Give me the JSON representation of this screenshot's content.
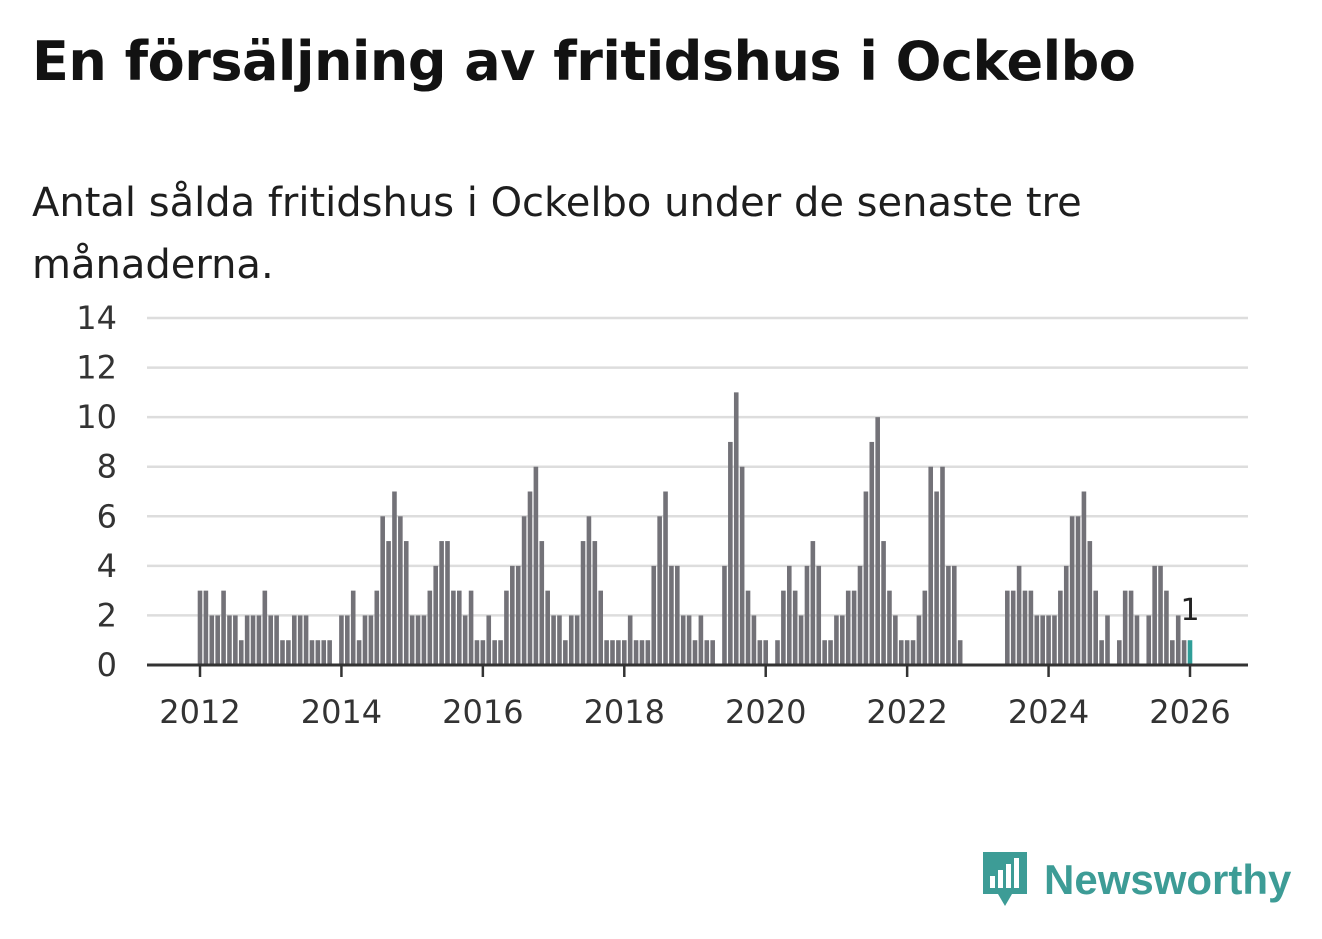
{
  "header": {
    "title": "En försäljning av fritidshus i Ockelbo",
    "subtitle": "Antal sålda fritidshus i Ockelbo under de senaste tre månaderna."
  },
  "brand": {
    "name": "Newsworthy",
    "icon": "newsworthy-logo-icon",
    "color": "#3d9c96"
  },
  "colors": {
    "bar": "#737278",
    "highlight": "#2f9e98",
    "grid": "#dddddd",
    "axis": "#333333"
  },
  "chart_data": {
    "type": "bar",
    "title": "",
    "xlabel": "",
    "ylabel": "",
    "grid": true,
    "legend": "none",
    "ylim": [
      0,
      14
    ],
    "yticks": [
      0,
      2,
      4,
      6,
      8,
      10,
      12,
      14
    ],
    "xticks": [
      "2012",
      "2014",
      "2016",
      "2018",
      "2020",
      "2022",
      "2024",
      "2026"
    ],
    "x_start": "2012-01",
    "x_end": "2026-02",
    "annotation": {
      "x": "2026-01",
      "label": "1"
    },
    "months": [
      "2012-01",
      "2012-02",
      "2012-03",
      "2012-04",
      "2012-05",
      "2012-06",
      "2012-07",
      "2012-08",
      "2012-09",
      "2012-10",
      "2012-11",
      "2012-12",
      "2013-01",
      "2013-02",
      "2013-03",
      "2013-04",
      "2013-05",
      "2013-06",
      "2013-07",
      "2013-08",
      "2013-09",
      "2013-10",
      "2013-11",
      "2013-12",
      "2014-01",
      "2014-02",
      "2014-03",
      "2014-04",
      "2014-05",
      "2014-06",
      "2014-07",
      "2014-08",
      "2014-09",
      "2014-10",
      "2014-11",
      "2014-12",
      "2015-01",
      "2015-02",
      "2015-03",
      "2015-04",
      "2015-05",
      "2015-06",
      "2015-07",
      "2015-08",
      "2015-09",
      "2015-10",
      "2015-11",
      "2015-12",
      "2016-01",
      "2016-02",
      "2016-03",
      "2016-04",
      "2016-05",
      "2016-06",
      "2016-07",
      "2016-08",
      "2016-09",
      "2016-10",
      "2016-11",
      "2016-12",
      "2017-01",
      "2017-02",
      "2017-03",
      "2017-04",
      "2017-05",
      "2017-06",
      "2017-07",
      "2017-08",
      "2017-09",
      "2017-10",
      "2017-11",
      "2017-12",
      "2018-01",
      "2018-02",
      "2018-03",
      "2018-04",
      "2018-05",
      "2018-06",
      "2018-07",
      "2018-08",
      "2018-09",
      "2018-10",
      "2018-11",
      "2018-12",
      "2019-01",
      "2019-02",
      "2019-03",
      "2019-04",
      "2019-05",
      "2019-06",
      "2019-07",
      "2019-08",
      "2019-09",
      "2019-10",
      "2019-11",
      "2019-12",
      "2020-01",
      "2020-02",
      "2020-03",
      "2020-04",
      "2020-05",
      "2020-06",
      "2020-07",
      "2020-08",
      "2020-09",
      "2020-10",
      "2020-11",
      "2020-12",
      "2021-01",
      "2021-02",
      "2021-03",
      "2021-04",
      "2021-05",
      "2021-06",
      "2021-07",
      "2021-08",
      "2021-09",
      "2021-10",
      "2021-11",
      "2021-12",
      "2022-01",
      "2022-02",
      "2022-03",
      "2022-04",
      "2022-05",
      "2022-06",
      "2022-07",
      "2022-08",
      "2022-09",
      "2022-10",
      "2022-11",
      "2022-12",
      "2023-01",
      "2023-02",
      "2023-03",
      "2023-04",
      "2023-05",
      "2023-06",
      "2023-07",
      "2023-08",
      "2023-09",
      "2023-10",
      "2023-11",
      "2023-12",
      "2024-01",
      "2024-02",
      "2024-03",
      "2024-04",
      "2024-05",
      "2024-06",
      "2024-07",
      "2024-08",
      "2024-09",
      "2024-10",
      "2024-11",
      "2024-12",
      "2025-01",
      "2025-02",
      "2025-03",
      "2025-04",
      "2025-05",
      "2025-06",
      "2025-07",
      "2025-08",
      "2025-09",
      "2025-10",
      "2025-11",
      "2025-12",
      "2026-01"
    ],
    "values": [
      3,
      3,
      2,
      2,
      3,
      2,
      2,
      1,
      2,
      2,
      2,
      3,
      2,
      2,
      1,
      1,
      2,
      2,
      2,
      1,
      1,
      1,
      1,
      0,
      2,
      2,
      3,
      1,
      2,
      2,
      3,
      6,
      5,
      7,
      6,
      5,
      2,
      2,
      2,
      3,
      4,
      5,
      5,
      3,
      3,
      2,
      3,
      1,
      1,
      2,
      1,
      1,
      3,
      4,
      4,
      6,
      7,
      8,
      5,
      3,
      2,
      2,
      1,
      2,
      2,
      5,
      6,
      5,
      3,
      1,
      1,
      1,
      1,
      2,
      1,
      1,
      1,
      4,
      6,
      7,
      4,
      4,
      2,
      2,
      1,
      2,
      1,
      1,
      0,
      4,
      9,
      11,
      8,
      3,
      2,
      1,
      1,
      0,
      1,
      3,
      4,
      3,
      2,
      4,
      5,
      4,
      1,
      1,
      2,
      2,
      3,
      3,
      4,
      7,
      9,
      10,
      5,
      3,
      2,
      1,
      1,
      1,
      2,
      3,
      8,
      7,
      8,
      4,
      4,
      1,
      0,
      0,
      0,
      0,
      0,
      0,
      0,
      3,
      3,
      4,
      3,
      3,
      2,
      2,
      2,
      2,
      3,
      4,
      6,
      6,
      7,
      5,
      3,
      1,
      2,
      0,
      1,
      3,
      3,
      2,
      0,
      2,
      4,
      4,
      3,
      1,
      2,
      1,
      1
    ]
  }
}
